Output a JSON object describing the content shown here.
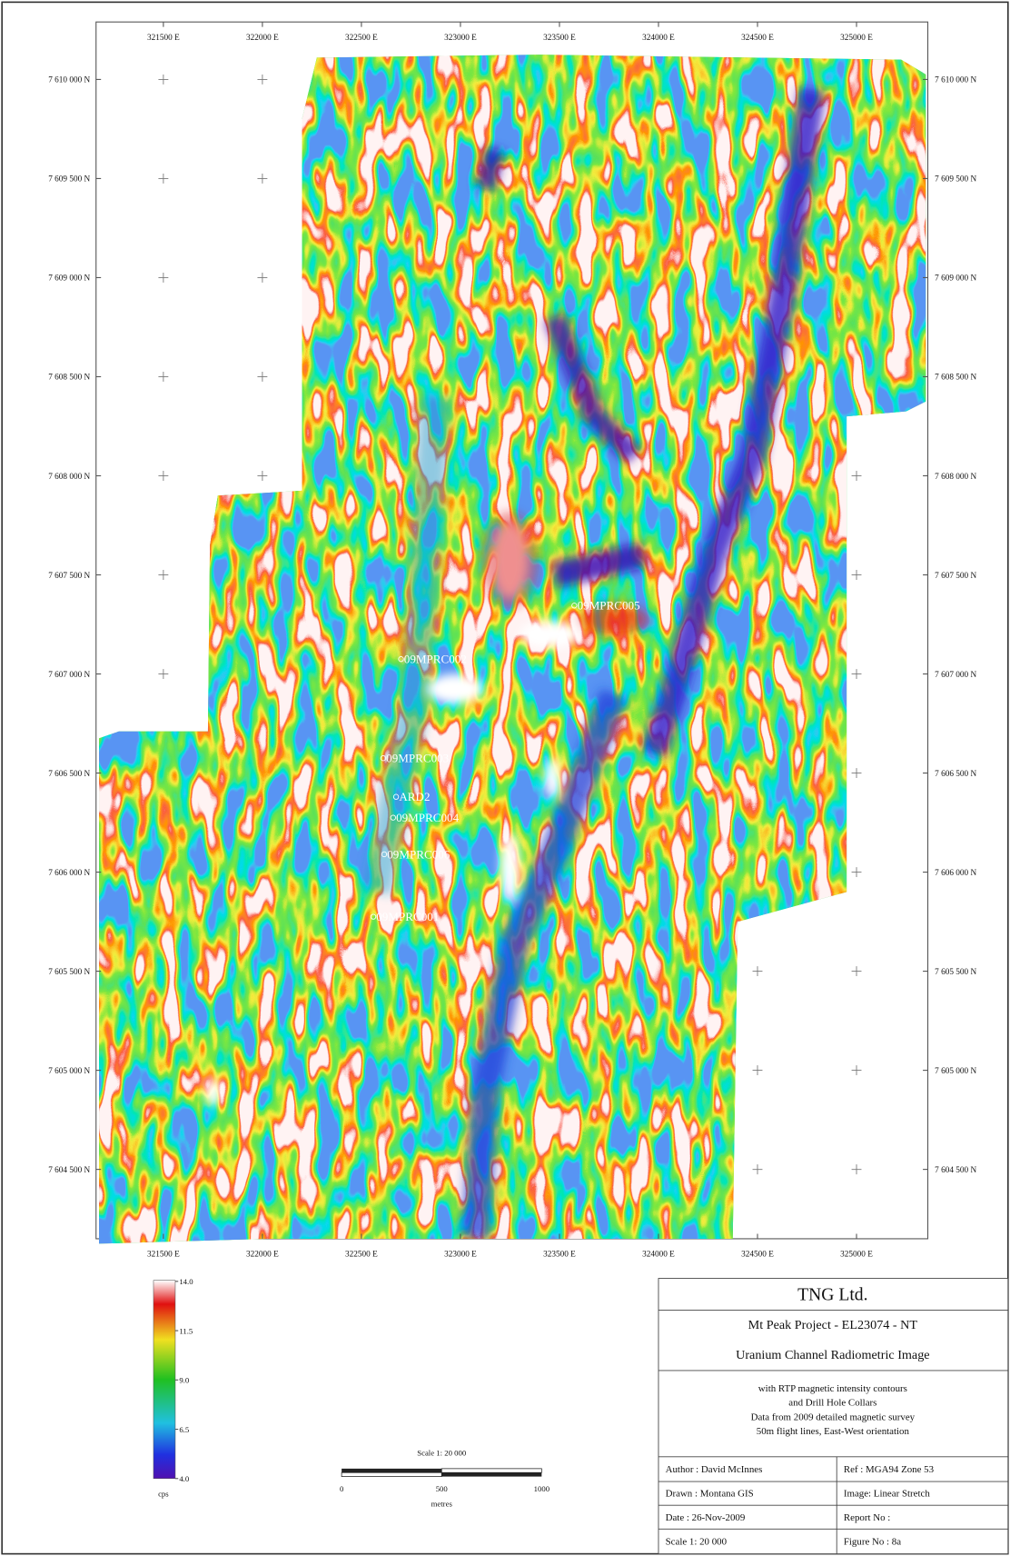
{
  "map": {
    "eastings": [
      "321500 E",
      "322000 E",
      "322500 E",
      "323000 E",
      "323500 E",
      "324000 E",
      "324500 E",
      "325000 E"
    ],
    "northings": [
      "7 610 000 N",
      "7 609 500 N",
      "7 609 000 N",
      "7 608 500 N",
      "7 608 000 N",
      "7 607 500 N",
      "7 607 000 N",
      "7 606 500 N",
      "7 606 000 N",
      "7 605 500 N",
      "7 605 000 N",
      "7 604 500 N"
    ],
    "drill_holes": [
      "09MPRC005",
      "09MPRC002",
      "09MPRC003",
      "ARD2",
      "09MPRC004",
      "09MPRC006",
      "09MPRC001"
    ],
    "legend": {
      "ticks": [
        "14.0",
        "11.5",
        "9.0",
        "6.5",
        "4.0"
      ],
      "unit": "cps"
    },
    "scale_bar": {
      "title": "Scale 1:  20 000",
      "labels": [
        "0",
        "500",
        "1000"
      ],
      "unit": "metres"
    },
    "title_block": {
      "company": "TNG Ltd.",
      "project": "Mt Peak Project - EL23074 - NT",
      "title": "Uranium Channel Radiometric Image",
      "notes": [
        "with RTP magnetic intensity contours",
        "and Drill Hole Collars",
        "Data from 2009 detailed magnetic survey",
        "50m flight lines, East-West orientation"
      ],
      "fields": [
        [
          "Author : David McInnes",
          "Ref :  MGA94 Zone 53"
        ],
        [
          "Drawn : Montana GIS",
          "Image: Linear Stretch"
        ],
        [
          "Date : 26-Nov-2009",
          "Report No :"
        ],
        [
          "Scale 1:  20 000",
          "Figure No : 8a"
        ]
      ]
    }
  }
}
